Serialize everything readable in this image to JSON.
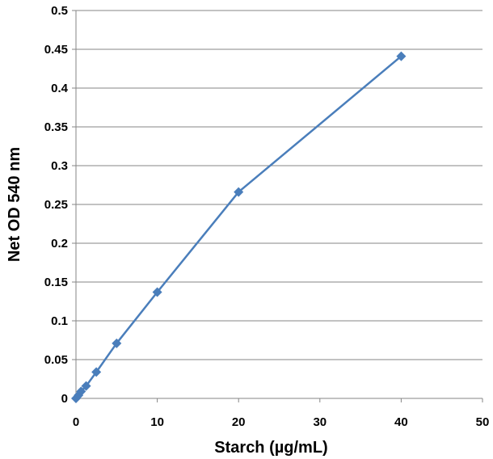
{
  "chart_data": {
    "type": "line",
    "title": "",
    "xlabel": "Starch (µg/mL)",
    "ylabel": "Net OD 540 nm",
    "xlim": [
      0,
      50
    ],
    "ylim": [
      0,
      0.5
    ],
    "x_ticks": [
      "0",
      "10",
      "20",
      "30",
      "40",
      "50"
    ],
    "y_ticks": [
      "0",
      "0.05",
      "0.1",
      "0.15",
      "0.2",
      "0.25",
      "0.3",
      "0.35",
      "0.4",
      "0.45",
      "0.5"
    ],
    "grid": "horizontal",
    "legend": "none",
    "series": [
      {
        "marker": "diamond",
        "color": "#4a7ebb",
        "x": [
          0,
          0.3125,
          0.625,
          1.25,
          2.5,
          5,
          10,
          20,
          40
        ],
        "y": [
          0,
          0.004,
          0.009,
          0.016,
          0.034,
          0.071,
          0.137,
          0.266,
          0.441
        ]
      }
    ]
  }
}
